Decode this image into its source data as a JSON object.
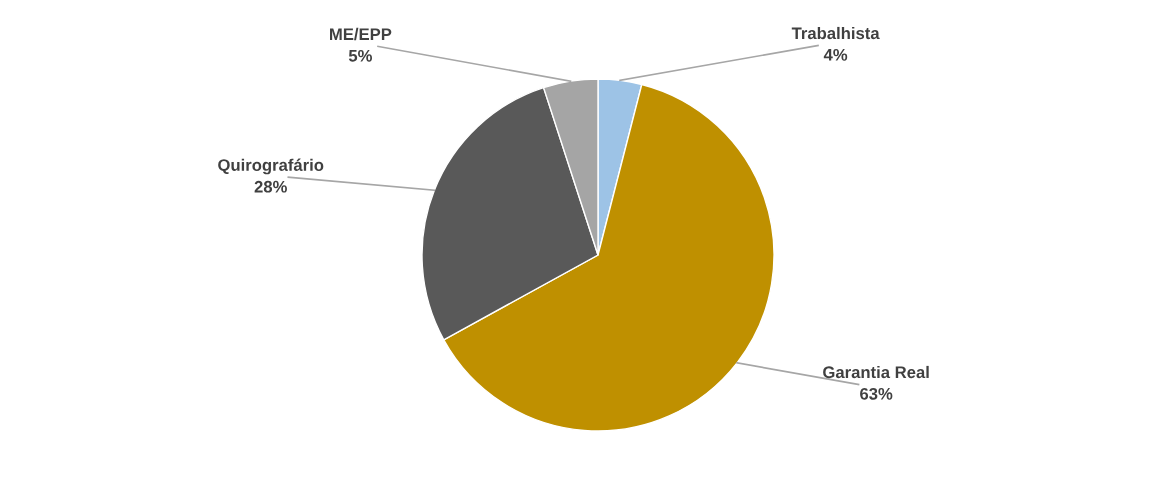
{
  "chart_data": {
    "type": "pie",
    "categories": [
      "Trabalhista",
      "Garantia Real",
      "Quirografário",
      "ME/EPP"
    ],
    "values": [
      4,
      63,
      28,
      5
    ],
    "value_labels": [
      "4%",
      "63%",
      "28%",
      "5%"
    ],
    "colors": [
      "#9dc3e6",
      "#bf9000",
      "#595959",
      "#a5a5a5"
    ],
    "legend": false
  }
}
